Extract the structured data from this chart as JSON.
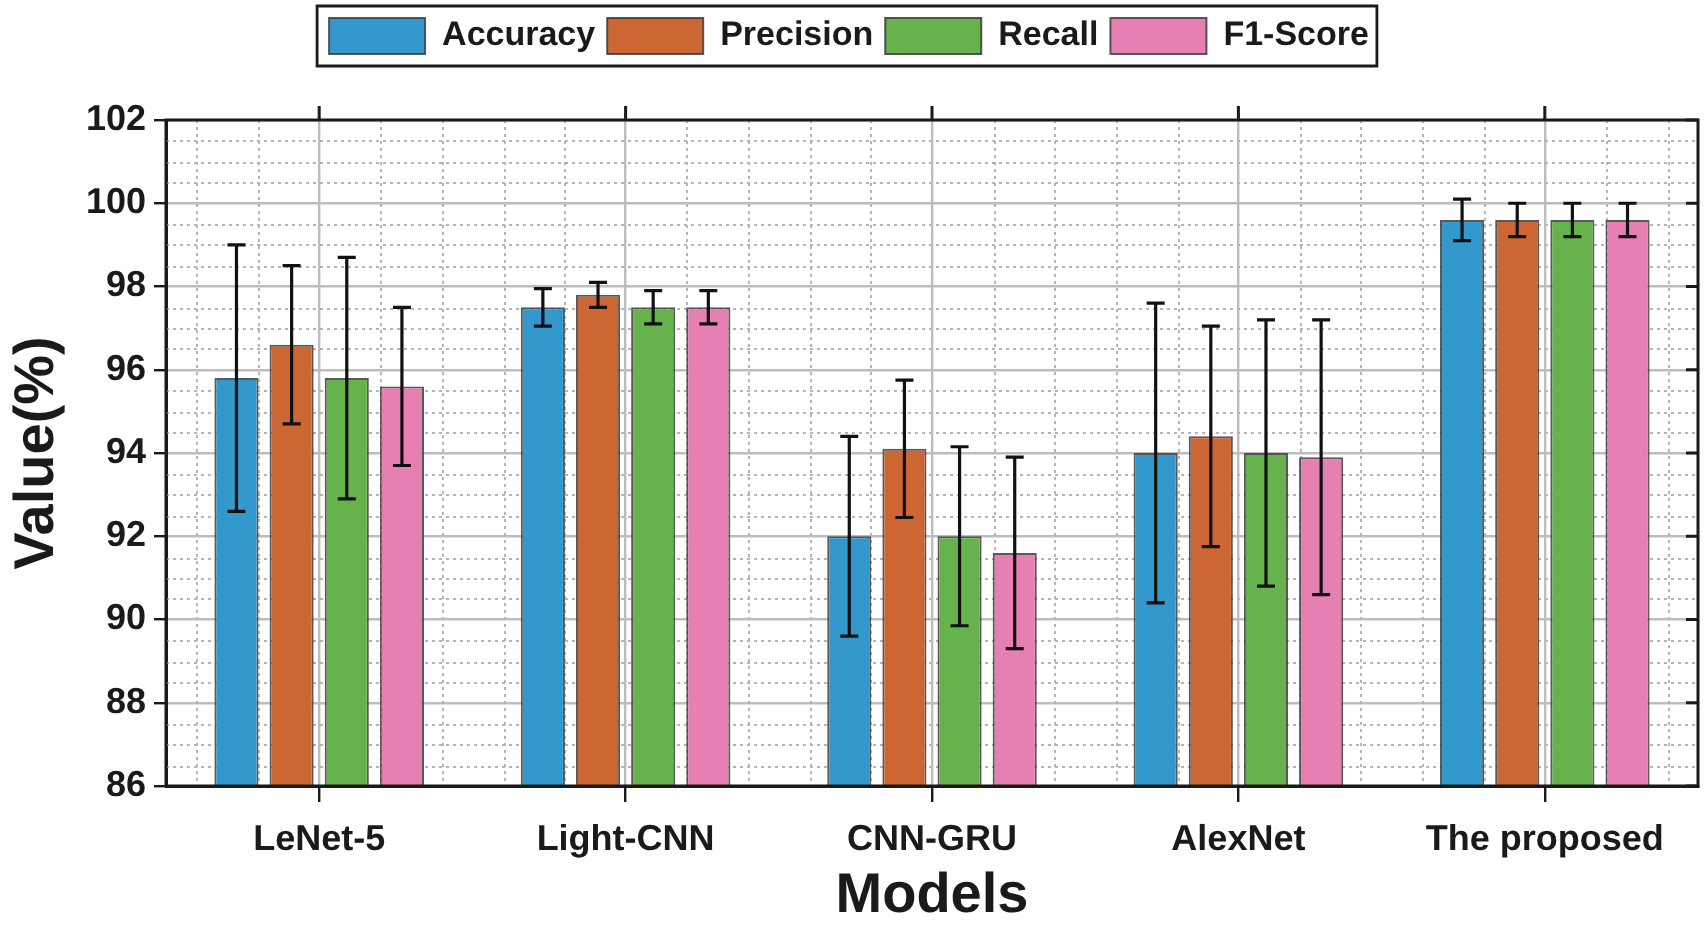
{
  "chart_data": {
    "type": "bar",
    "xlabel": "Models",
    "ylabel": "Value(%)",
    "categories": [
      "LeNet-5",
      "Light-CNN",
      "CNN-GRU",
      "AlexNet",
      "The proposed"
    ],
    "series": [
      {
        "name": "Accuracy",
        "color": "#3399cc",
        "values": [
          95.8,
          97.5,
          92.0,
          94.0,
          99.6
        ],
        "errors": [
          3.2,
          0.45,
          2.4,
          3.6,
          0.5
        ]
      },
      {
        "name": "Precision",
        "color": "#cc6633",
        "values": [
          96.6,
          97.8,
          94.1,
          94.4,
          99.6
        ],
        "errors": [
          1.9,
          0.3,
          1.65,
          2.65,
          0.4
        ]
      },
      {
        "name": "Recall",
        "color": "#66b34d",
        "values": [
          95.8,
          97.5,
          92.0,
          94.0,
          99.6
        ],
        "errors": [
          2.9,
          0.4,
          2.15,
          3.2,
          0.4
        ]
      },
      {
        "name": "F1-Score",
        "color": "#e680b3",
        "values": [
          95.6,
          97.5,
          91.6,
          93.9,
          99.6
        ],
        "errors": [
          1.9,
          0.4,
          2.3,
          3.3,
          0.4
        ]
      }
    ],
    "ylim": [
      86,
      102
    ],
    "yticks": [
      86,
      88,
      90,
      92,
      94,
      96,
      98,
      100,
      102
    ],
    "grid": true,
    "legend": "top"
  }
}
